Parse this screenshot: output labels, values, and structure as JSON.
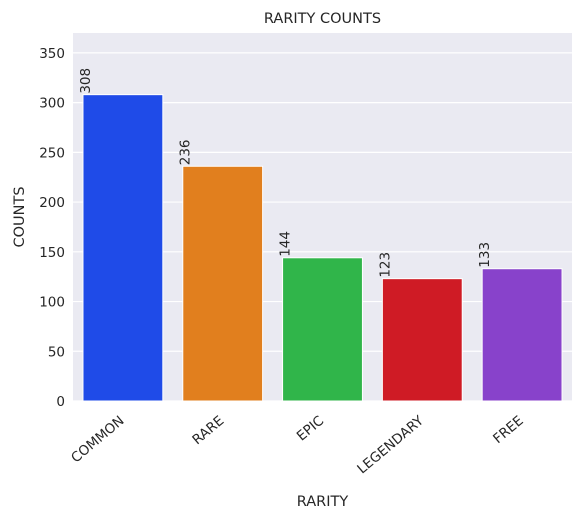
{
  "chart_data": {
    "type": "bar",
    "title": "RARITY COUNTS",
    "xlabel": "RARITY",
    "ylabel": "COUNTS",
    "categories": [
      "COMMON",
      "RARE",
      "EPIC",
      "LEGENDARY",
      "FREE"
    ],
    "values": [
      308,
      236,
      144,
      123,
      133
    ],
    "value_labels": [
      "308",
      "236",
      "144",
      "123",
      "133"
    ],
    "bar_colors": [
      "#1f4be8",
      "#e17f1e",
      "#30b54a",
      "#cf1b25",
      "#8842cb"
    ],
    "ylim": [
      0,
      370
    ],
    "yticks": [
      0,
      50,
      100,
      150,
      200,
      250,
      300,
      350
    ],
    "ytick_labels": [
      "0",
      "50",
      "100",
      "150",
      "200",
      "250",
      "300",
      "350"
    ],
    "grid": true,
    "background": "#eaeaf2",
    "grid_color": "#ffffff"
  }
}
